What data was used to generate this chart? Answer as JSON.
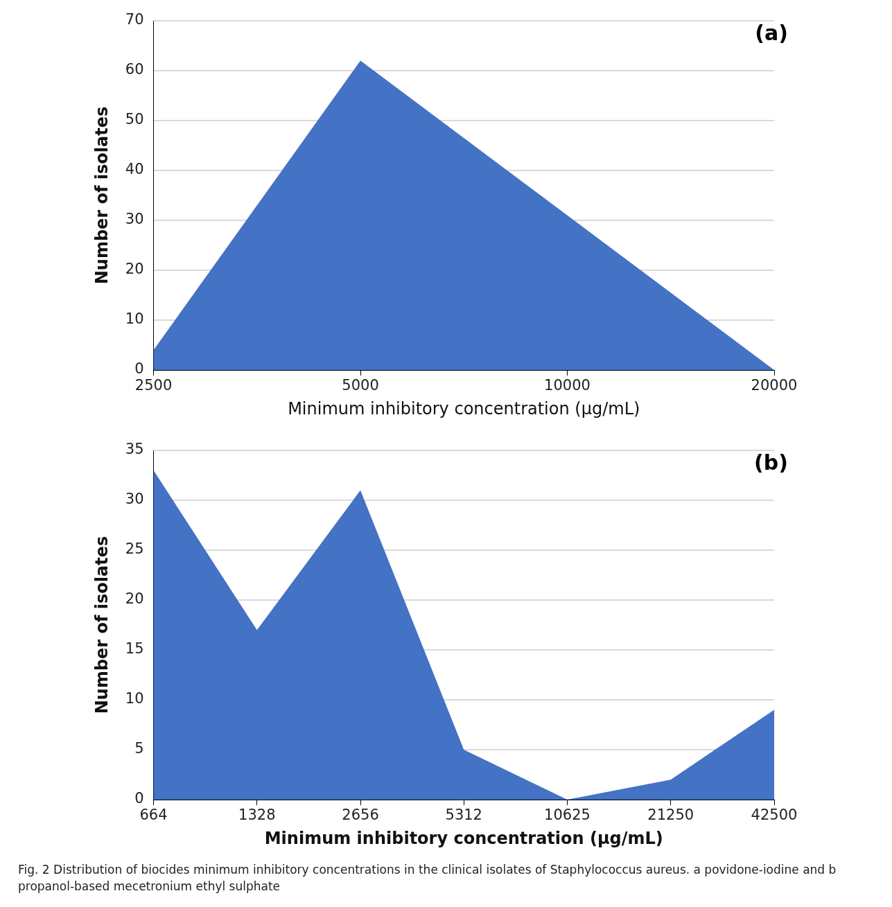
{
  "chart_data": [
    {
      "type": "area",
      "categories": [
        "2500",
        "5000",
        "10000",
        "20000"
      ],
      "values": [
        4,
        62,
        31,
        0
      ],
      "color": "#4472c4",
      "xlabel": "Minimum inhibitory concentration (µg/mL)",
      "ylabel": "Number of isolates",
      "ylim": [
        0,
        70
      ],
      "yticks": [
        0,
        10,
        20,
        30,
        40,
        50,
        60,
        70
      ],
      "grid": "y",
      "annotations": [
        "(a)"
      ]
    },
    {
      "type": "area",
      "categories": [
        "664",
        "1328",
        "2656",
        "5312",
        "10625",
        "21250",
        "42500"
      ],
      "values": [
        33,
        17,
        31,
        5,
        0,
        2,
        9
      ],
      "color": "#4472c4",
      "xlabel": "Minimum inhibitory concentration (µg/mL)",
      "ylabel": "Number of isolates",
      "ylim": [
        0,
        35
      ],
      "yticks": [
        0,
        5,
        10,
        15,
        20,
        25,
        30,
        35
      ],
      "grid": "y",
      "annotations": [
        "(b)",
        "Fig. 2 Distribution of biocides minimum inhibitory concentrations in the clinical isolates of Staphylococcus aureus. a povidone-iodine and b propanol-based mecetronium ethyl sulphate"
      ]
    }
  ]
}
